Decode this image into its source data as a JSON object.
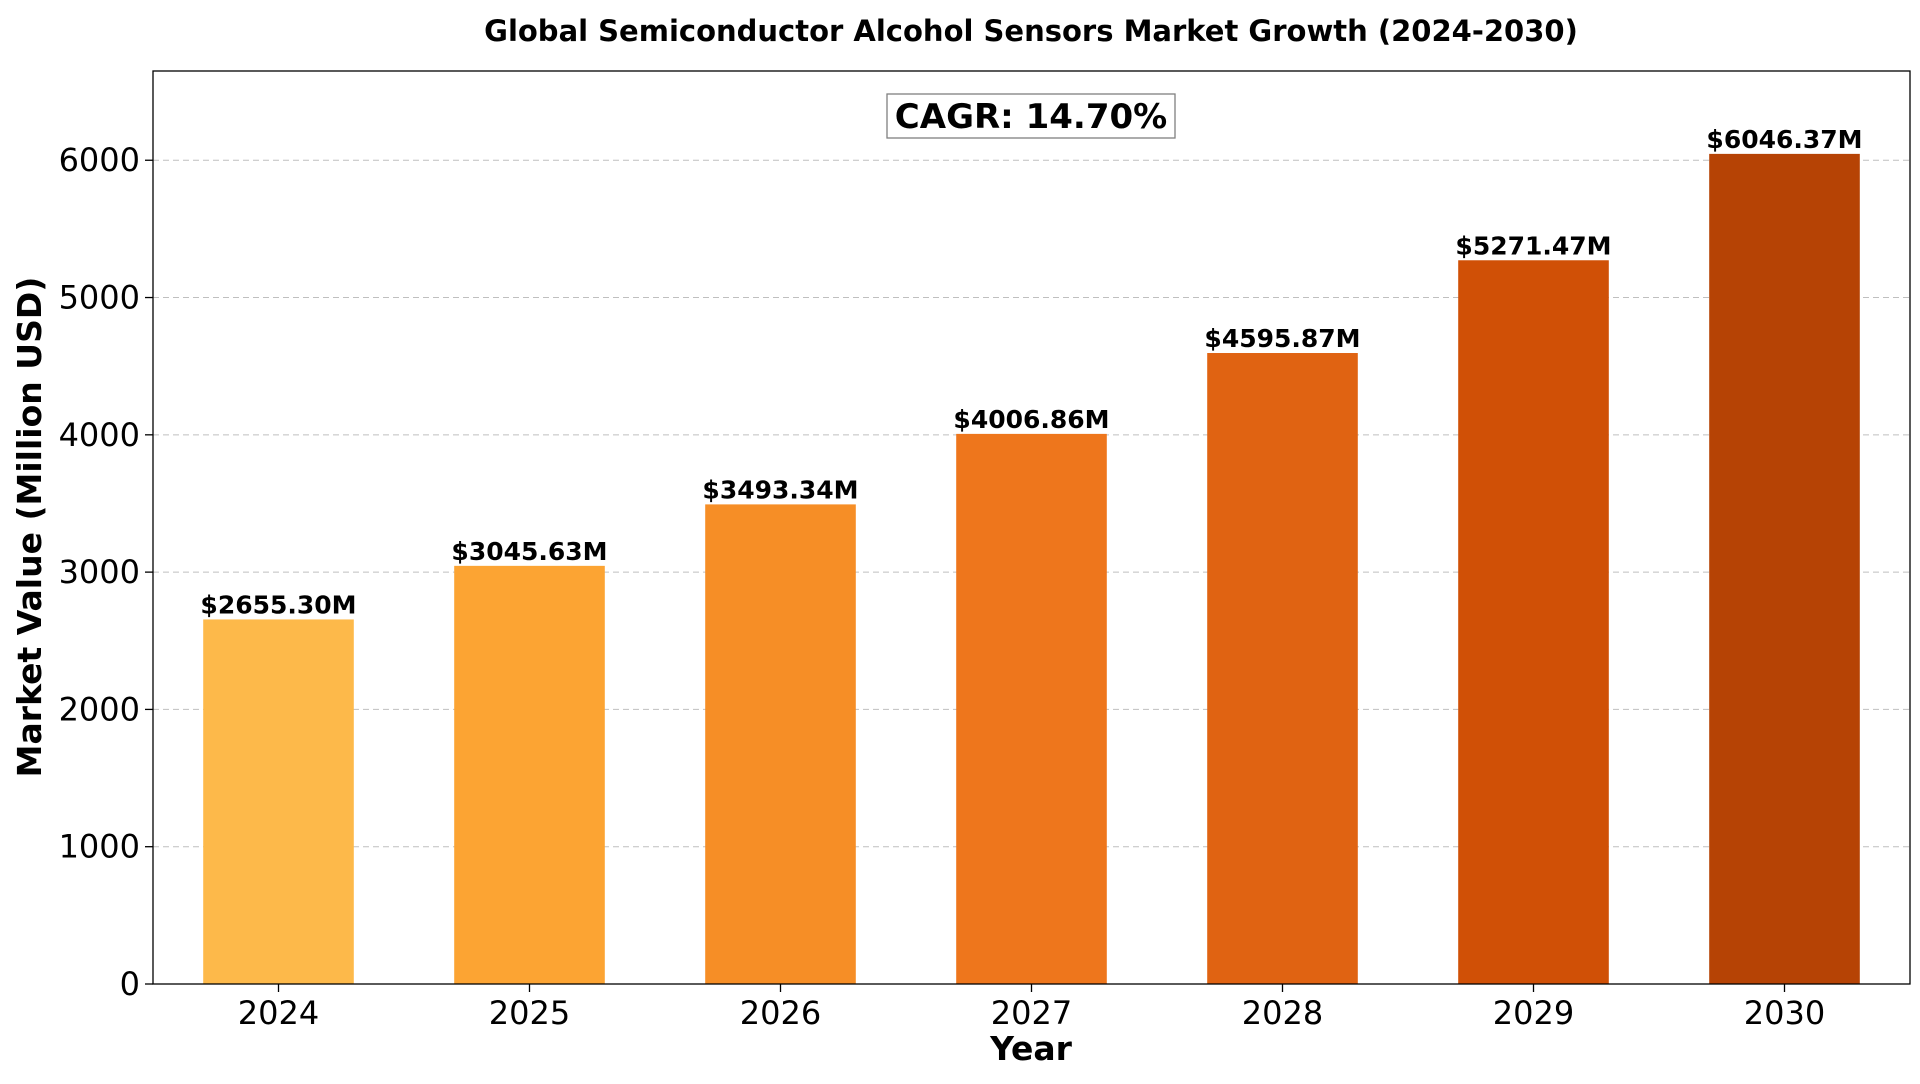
{
  "chart_data": {
    "type": "bar",
    "title": "Global Semiconductor Alcohol Sensors Market Growth (2024-2030)",
    "xlabel": "Year",
    "ylabel": "Market Value (Million USD)",
    "categories": [
      "2024",
      "2025",
      "2026",
      "2027",
      "2028",
      "2029",
      "2030"
    ],
    "values": [
      2655.3,
      3045.63,
      3493.34,
      4006.86,
      4595.87,
      5271.47,
      6046.37
    ],
    "value_labels": [
      "$2655.30M",
      "$3045.63M",
      "$3493.34M",
      "$4006.86M",
      "$4595.87M",
      "$5271.47M",
      "$6046.37M"
    ],
    "bar_colors": [
      "#FDB94A",
      "#FCA433",
      "#F68E26",
      "#EE761C",
      "#E06312",
      "#D05006",
      "#B64305"
    ],
    "ylim": [
      0,
      6650
    ],
    "yticks": [
      0,
      1000,
      2000,
      3000,
      4000,
      5000,
      6000
    ],
    "ytick_labels": [
      "0",
      "1000",
      "2000",
      "3000",
      "4000",
      "5000",
      "6000"
    ],
    "grid": "y-dashed",
    "annotation": "CAGR: 14.70%"
  }
}
